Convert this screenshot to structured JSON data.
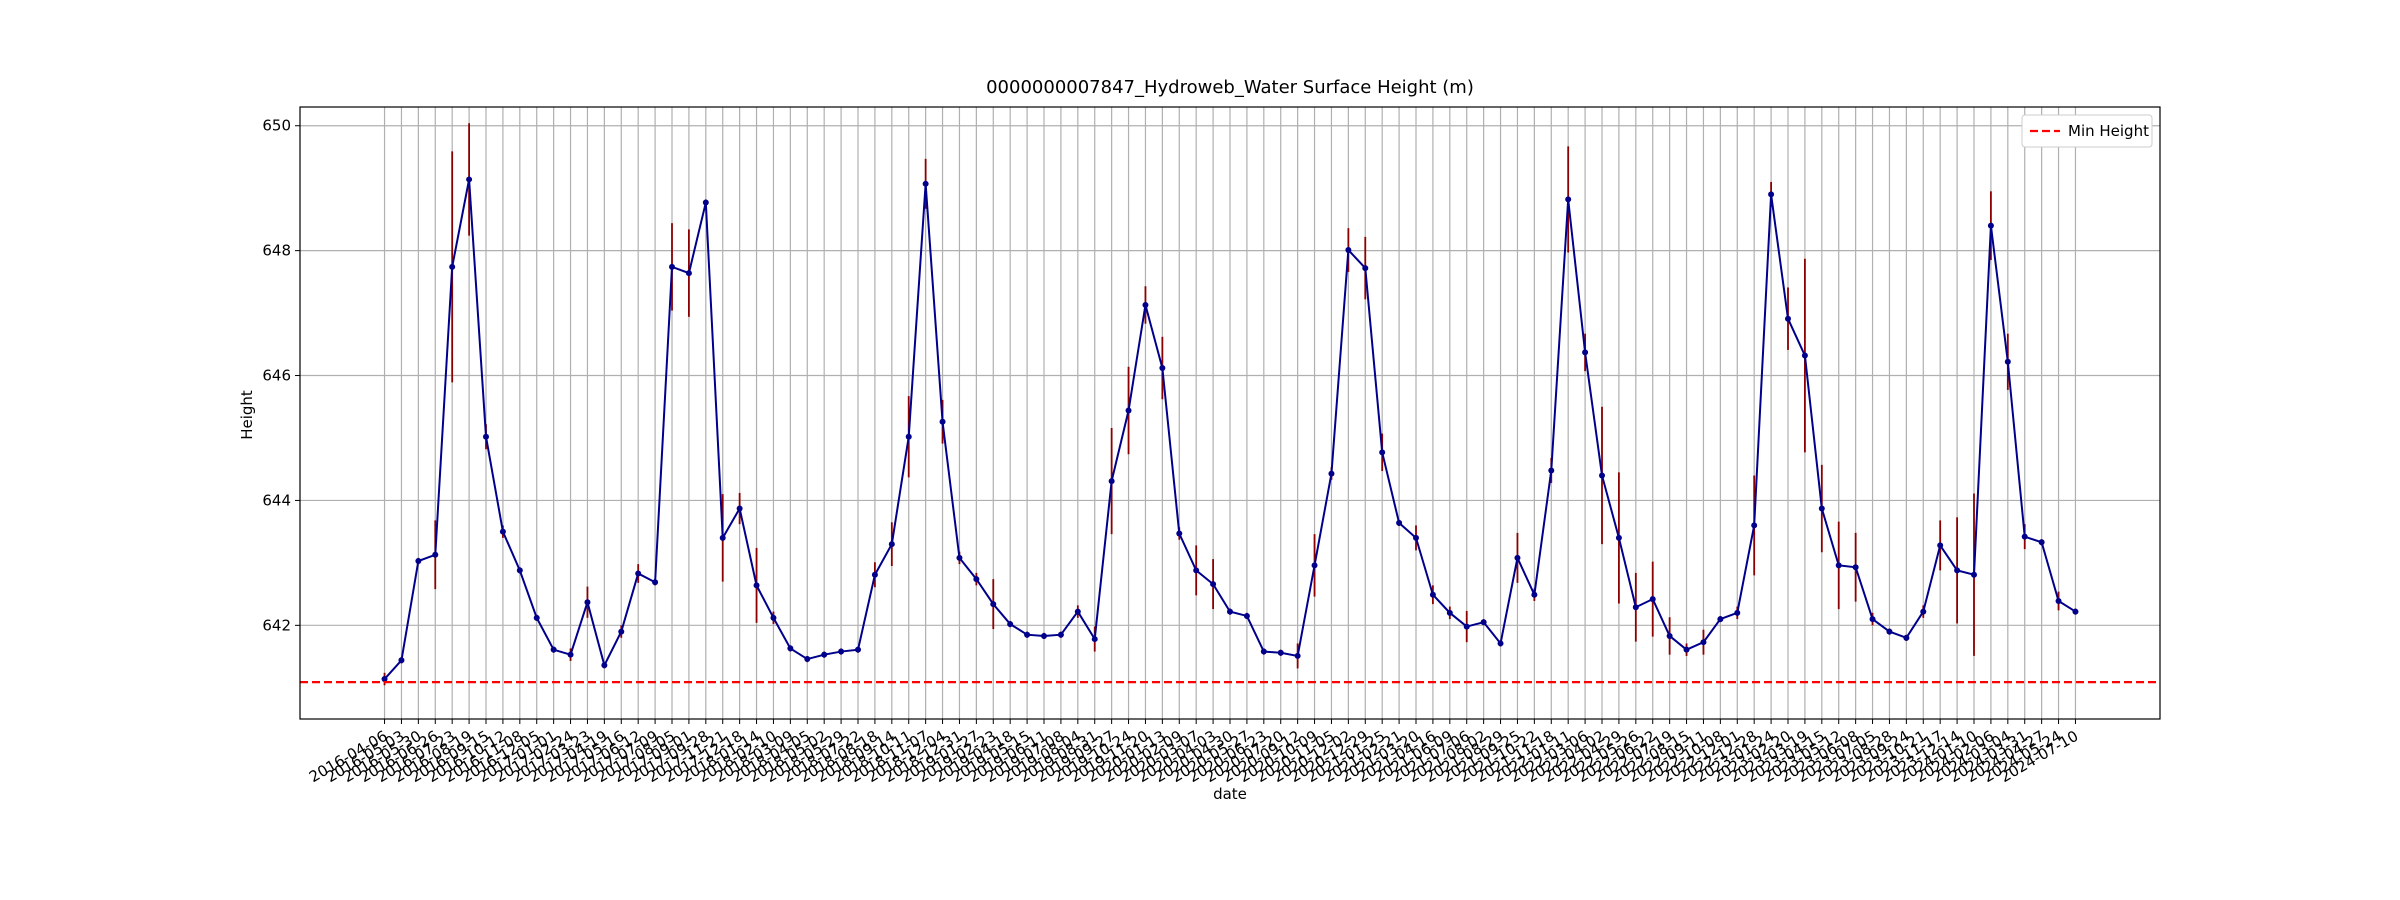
{
  "chart_data": {
    "type": "line",
    "title": "0000000007847_Hydroweb_Water Surface Height (m)",
    "xlabel": "date",
    "ylabel": "Height",
    "categories": [
      "2016-04-06",
      "2016-05-03",
      "2016-05-30",
      "2016-06-26",
      "2016-07-23",
      "2016-08-19",
      "2016-09-15",
      "2016-10-12",
      "2016-11-08",
      "2016-12-05",
      "2017-01-01",
      "2017-02-24",
      "2017-03-23",
      "2017-04-19",
      "2017-05-16",
      "2017-06-12",
      "2017-07-09",
      "2017-08-05",
      "2017-09-01",
      "2017-09-28",
      "2017-11-21",
      "2017-12-18",
      "2018-01-14",
      "2018-02-10",
      "2018-03-09",
      "2018-04-05",
      "2018-05-02",
      "2018-05-29",
      "2018-07-22",
      "2018-08-18",
      "2018-09-14",
      "2018-10-11",
      "2018-11-07",
      "2018-12-04",
      "2018-12-31",
      "2019-01-27",
      "2019-02-23",
      "2019-04-18",
      "2019-05-15",
      "2019-06-11",
      "2019-07-08",
      "2019-08-04",
      "2019-08-31",
      "2019-09-27",
      "2019-10-24",
      "2019-11-20",
      "2020-01-13",
      "2020-02-09",
      "2020-03-07",
      "2020-04-03",
      "2020-04-30",
      "2020-05-27",
      "2020-06-23",
      "2020-07-20",
      "2020-09-12",
      "2020-10-09",
      "2020-11-05",
      "2020-12-02",
      "2020-12-29",
      "2021-01-25",
      "2021-02-21",
      "2021-03-20",
      "2021-04-16",
      "2021-06-09",
      "2021-07-06",
      "2021-08-02",
      "2021-08-29",
      "2021-09-25",
      "2021-10-22",
      "2021-11-18",
      "2022-01-11",
      "2022-03-06",
      "2022-04-02",
      "2022-04-29",
      "2022-05-26",
      "2022-06-22",
      "2022-07-19",
      "2022-08-15",
      "2022-09-11",
      "2022-10-08",
      "2022-12-01",
      "2022-12-28",
      "2023-01-24",
      "2023-02-20",
      "2023-03-19",
      "2023-04-15",
      "2023-05-12",
      "2023-06-08",
      "2023-07-05",
      "2023-08-28",
      "2023-09-24",
      "2023-10-21",
      "2023-11-17",
      "2023-12-14",
      "2024-01-10",
      "2024-02-06",
      "2024-03-04",
      "2024-03-31",
      "2024-04-27",
      "2024-05-24",
      "2024-07-10"
    ],
    "values": [
      641.14,
      641.44,
      643.03,
      643.13,
      647.74,
      649.14,
      645.02,
      643.5,
      642.88,
      642.12,
      641.61,
      641.53,
      642.37,
      641.36,
      641.9,
      642.83,
      642.69,
      647.74,
      647.64,
      648.77,
      643.4,
      643.87,
      642.64,
      642.12,
      641.63,
      641.46,
      641.53,
      641.58,
      641.61,
      642.81,
      643.3,
      645.02,
      649.07,
      645.26,
      643.08,
      642.74,
      642.34,
      642.02,
      641.85,
      641.83,
      641.85,
      642.22,
      641.78,
      644.31,
      645.44,
      647.13,
      646.12,
      643.47,
      642.88,
      642.66,
      642.22,
      642.15,
      641.58,
      641.56,
      641.51,
      642.96,
      644.43,
      648.01,
      647.72,
      644.77,
      643.64,
      643.4,
      642.49,
      642.2,
      641.98,
      642.05,
      641.71,
      643.08,
      642.49,
      644.48,
      648.82,
      646.37,
      644.4,
      643.4,
      642.29,
      642.42,
      641.83,
      641.61,
      641.73,
      642.1,
      642.2,
      643.6,
      648.9,
      646.91,
      646.32,
      643.87,
      642.96,
      642.93,
      642.1,
      641.9,
      641.8,
      642.22,
      643.28,
      642.88,
      642.81,
      648.4,
      646.22,
      643.42,
      643.33,
      642.39,
      642.22
    ],
    "errors": [
      0.1,
      0.05,
      0.05,
      0.55,
      1.85,
      0.9,
      0.2,
      0.1,
      0.05,
      0.05,
      0.05,
      0.1,
      0.25,
      0.05,
      0.1,
      0.15,
      0.05,
      0.7,
      0.7,
      0.05,
      0.7,
      0.25,
      0.6,
      0.1,
      0.05,
      0.05,
      0.05,
      0.05,
      0.05,
      0.2,
      0.35,
      0.65,
      0.4,
      0.35,
      0.1,
      0.1,
      0.4,
      0.05,
      0.05,
      0.05,
      0.05,
      0.1,
      0.2,
      0.85,
      0.7,
      0.3,
      0.5,
      0.1,
      0.4,
      0.4,
      0.05,
      0.05,
      0.05,
      0.05,
      0.2,
      0.5,
      0.1,
      0.35,
      0.5,
      0.3,
      0.05,
      0.2,
      0.15,
      0.1,
      0.25,
      0.05,
      0.05,
      0.4,
      0.1,
      0.2,
      0.85,
      0.3,
      1.1,
      1.05,
      0.55,
      0.6,
      0.3,
      0.1,
      0.2,
      0.05,
      0.1,
      0.8,
      0.2,
      0.5,
      1.55,
      0.7,
      0.7,
      0.55,
      0.1,
      0.05,
      0.05,
      0.1,
      0.4,
      0.85,
      1.3,
      0.55,
      0.45,
      0.2,
      0.05,
      0.15,
      0.05
    ],
    "color": "#00008b",
    "error_color": "#8b0000",
    "hlines": [
      {
        "name": "Min Height",
        "value": 641.09,
        "color": "#ff0000",
        "dashed": true
      }
    ],
    "ylim": [
      640.5,
      650.3
    ],
    "yticks": [
      642,
      644,
      646,
      648,
      650
    ],
    "grid": true,
    "legend": "upper right"
  }
}
